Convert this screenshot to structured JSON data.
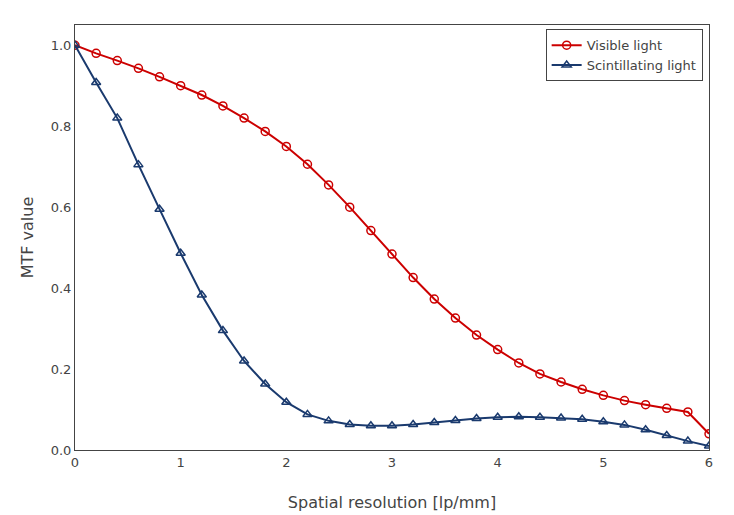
{
  "chart_data": {
    "type": "line",
    "xlabel": "Spatial resolution [lp/mm]",
    "ylabel": "MTF value",
    "xlim": [
      0,
      6
    ],
    "ylim": [
      0,
      1.05
    ],
    "xticks": [
      0,
      1,
      2,
      3,
      4,
      5,
      6
    ],
    "yticks": [
      {
        "value": 0,
        "label": "0.0"
      },
      0.2,
      0.4,
      0.6,
      0.8,
      {
        "value": 1.0,
        "label": "1.0"
      }
    ],
    "grid": false,
    "legend": "upper right",
    "series": [
      {
        "name": "Visible light",
        "color": "#cc0000",
        "marker": "circle",
        "x": [
          0.0,
          0.2,
          0.4,
          0.6,
          0.8,
          1.0,
          1.2,
          1.4,
          1.6,
          1.8,
          2.0,
          2.2,
          2.4,
          2.6,
          2.8,
          3.0,
          3.2,
          3.4,
          3.6,
          3.8,
          4.0,
          4.2,
          4.4,
          4.6,
          4.8,
          5.0,
          5.2,
          5.4,
          5.6,
          5.8,
          6.0
        ],
        "values": [
          1.0,
          0.98,
          0.962,
          0.943,
          0.922,
          0.9,
          0.877,
          0.85,
          0.82,
          0.787,
          0.75,
          0.706,
          0.655,
          0.6,
          0.542,
          0.484,
          0.426,
          0.373,
          0.326,
          0.284,
          0.248,
          0.215,
          0.188,
          0.168,
          0.15,
          0.135,
          0.122,
          0.112,
          0.103,
          0.094,
          0.04
        ]
      },
      {
        "name": "Scintillating light",
        "color": "#1a3a6e",
        "marker": "triangle-up",
        "x": [
          0.0,
          0.2,
          0.4,
          0.6,
          0.8,
          1.0,
          1.2,
          1.4,
          1.6,
          1.8,
          2.0,
          2.2,
          2.4,
          2.6,
          2.8,
          3.0,
          3.2,
          3.4,
          3.6,
          3.8,
          4.0,
          4.2,
          4.4,
          4.6,
          4.8,
          5.0,
          5.2,
          5.4,
          5.6,
          5.8,
          6.0
        ],
        "values": [
          1.0,
          0.908,
          0.82,
          0.705,
          0.595,
          0.486,
          0.383,
          0.295,
          0.22,
          0.163,
          0.118,
          0.088,
          0.072,
          0.063,
          0.06,
          0.06,
          0.063,
          0.068,
          0.073,
          0.078,
          0.081,
          0.082,
          0.081,
          0.079,
          0.076,
          0.07,
          0.062,
          0.05,
          0.036,
          0.022,
          0.01
        ]
      }
    ]
  }
}
